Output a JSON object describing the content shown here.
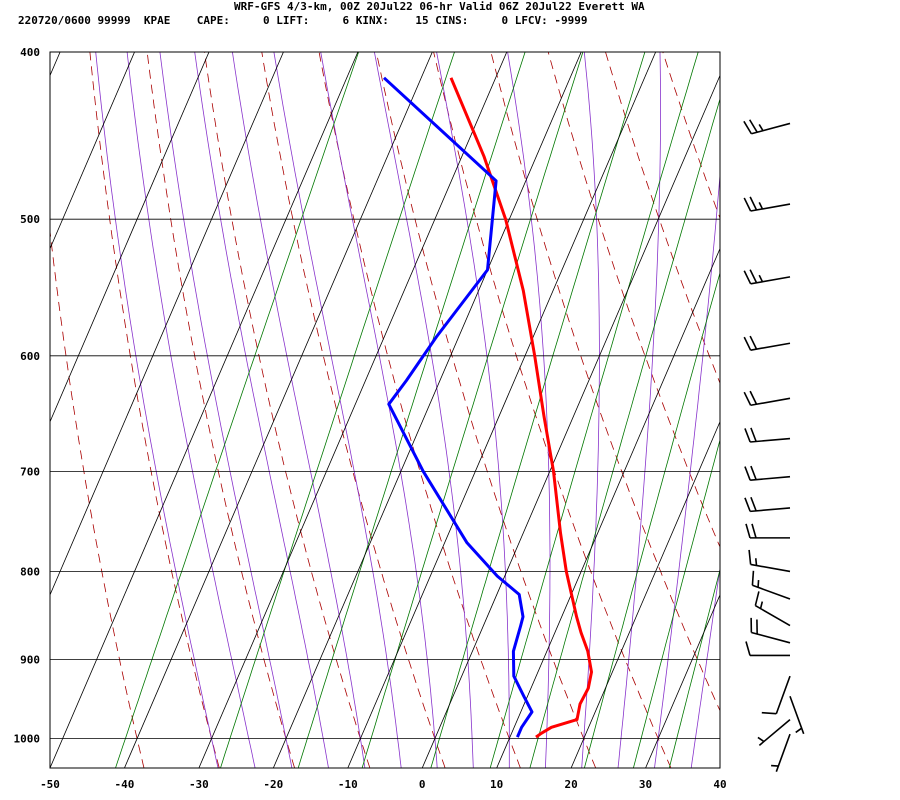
{
  "header": {
    "title": "WRF-GFS 4/3-km, 00Z 20Jul22 06-hr Valid 06Z 20Jul22 Everett WA",
    "subtitle": "220720/0600 99999  KPAE    CAPE:     0 LIFT:     6 KINX:    15 CINS:     0 LFCV: -9999"
  },
  "colors": {
    "temperature": "#ff0000",
    "dewpoint": "#0000ff",
    "dry_adiabat": "#aa0000",
    "moist_adiabat": "#8833cc",
    "mixing_ratio": "#007700",
    "grid": "#000000",
    "wind_barb": "#000000"
  },
  "chart_data": {
    "type": "line",
    "chart_kind": "skew-t log-p",
    "xlabel": "",
    "ylabel": "",
    "xlim": [
      -50,
      40
    ],
    "ylim": [
      1040,
      400
    ],
    "y_scale": "log",
    "x_ticks": [
      "-50",
      "-40",
      "-30",
      "-20",
      "-10",
      "0",
      "10",
      "20",
      "30",
      "40"
    ],
    "y_ticks": [
      "400",
      "500",
      "600",
      "700",
      "800",
      "900",
      "1000"
    ],
    "grid": true,
    "series": [
      {
        "key": "temperature",
        "points": [
          {
            "p": 998,
            "t": 13.5
          },
          {
            "p": 993,
            "t": 14.0
          },
          {
            "p": 985,
            "t": 15.0
          },
          {
            "p": 975,
            "t": 18.0
          },
          {
            "p": 955,
            "t": 17.5
          },
          {
            "p": 935,
            "t": 17.7
          },
          {
            "p": 915,
            "t": 17.2
          },
          {
            "p": 890,
            "t": 15.5
          },
          {
            "p": 868,
            "t": 13.5
          },
          {
            "p": 850,
            "t": 12.0
          },
          {
            "p": 800,
            "t": 8.0
          },
          {
            "p": 760,
            "t": 5.0
          },
          {
            "p": 700,
            "t": 0.5
          },
          {
            "p": 650,
            "t": -4.0
          },
          {
            "p": 600,
            "t": -8.7
          },
          {
            "p": 550,
            "t": -14.0
          },
          {
            "p": 500,
            "t": -20.5
          },
          {
            "p": 460,
            "t": -27.0
          },
          {
            "p": 414,
            "t": -36.0
          }
        ]
      },
      {
        "key": "dewpoint",
        "points": [
          {
            "p": 998,
            "t": 11.0
          },
          {
            "p": 985,
            "t": 11.0
          },
          {
            "p": 965,
            "t": 11.5
          },
          {
            "p": 945,
            "t": 9.5
          },
          {
            "p": 920,
            "t": 7.0
          },
          {
            "p": 890,
            "t": 5.5
          },
          {
            "p": 860,
            "t": 5.0
          },
          {
            "p": 850,
            "t": 4.8
          },
          {
            "p": 825,
            "t": 3.0
          },
          {
            "p": 805,
            "t": -1.0
          },
          {
            "p": 770,
            "t": -7.0
          },
          {
            "p": 700,
            "t": -17.0
          },
          {
            "p": 640,
            "t": -25.5
          },
          {
            "p": 620,
            "t": -24.5
          },
          {
            "p": 585,
            "t": -23.0
          },
          {
            "p": 535,
            "t": -20.0
          },
          {
            "p": 475,
            "t": -24.0
          },
          {
            "p": 414,
            "t": -45.0
          }
        ]
      }
    ],
    "wind_barbs": [
      {
        "p": 994,
        "dir": 200,
        "speed_kt": 5
      },
      {
        "p": 975,
        "dir": 230,
        "speed_kt": 5
      },
      {
        "p": 945,
        "dir": 160,
        "speed_kt": 5
      },
      {
        "p": 920,
        "dir": 200,
        "speed_kt": 10
      },
      {
        "p": 895,
        "dir": 270,
        "speed_kt": 10
      },
      {
        "p": 880,
        "dir": 285,
        "speed_kt": 20
      },
      {
        "p": 860,
        "dir": 300,
        "speed_kt": 15
      },
      {
        "p": 830,
        "dir": 290,
        "speed_kt": 15
      },
      {
        "p": 800,
        "dir": 280,
        "speed_kt": 15
      },
      {
        "p": 765,
        "dir": 270,
        "speed_kt": 20
      },
      {
        "p": 735,
        "dir": 265,
        "speed_kt": 20
      },
      {
        "p": 705,
        "dir": 265,
        "speed_kt": 20
      },
      {
        "p": 670,
        "dir": 265,
        "speed_kt": 20
      },
      {
        "p": 635,
        "dir": 260,
        "speed_kt": 20
      },
      {
        "p": 590,
        "dir": 260,
        "speed_kt": 20
      },
      {
        "p": 540,
        "dir": 260,
        "speed_kt": 25
      },
      {
        "p": 490,
        "dir": 260,
        "speed_kt": 25
      },
      {
        "p": 440,
        "dir": 255,
        "speed_kt": 25
      }
    ]
  }
}
